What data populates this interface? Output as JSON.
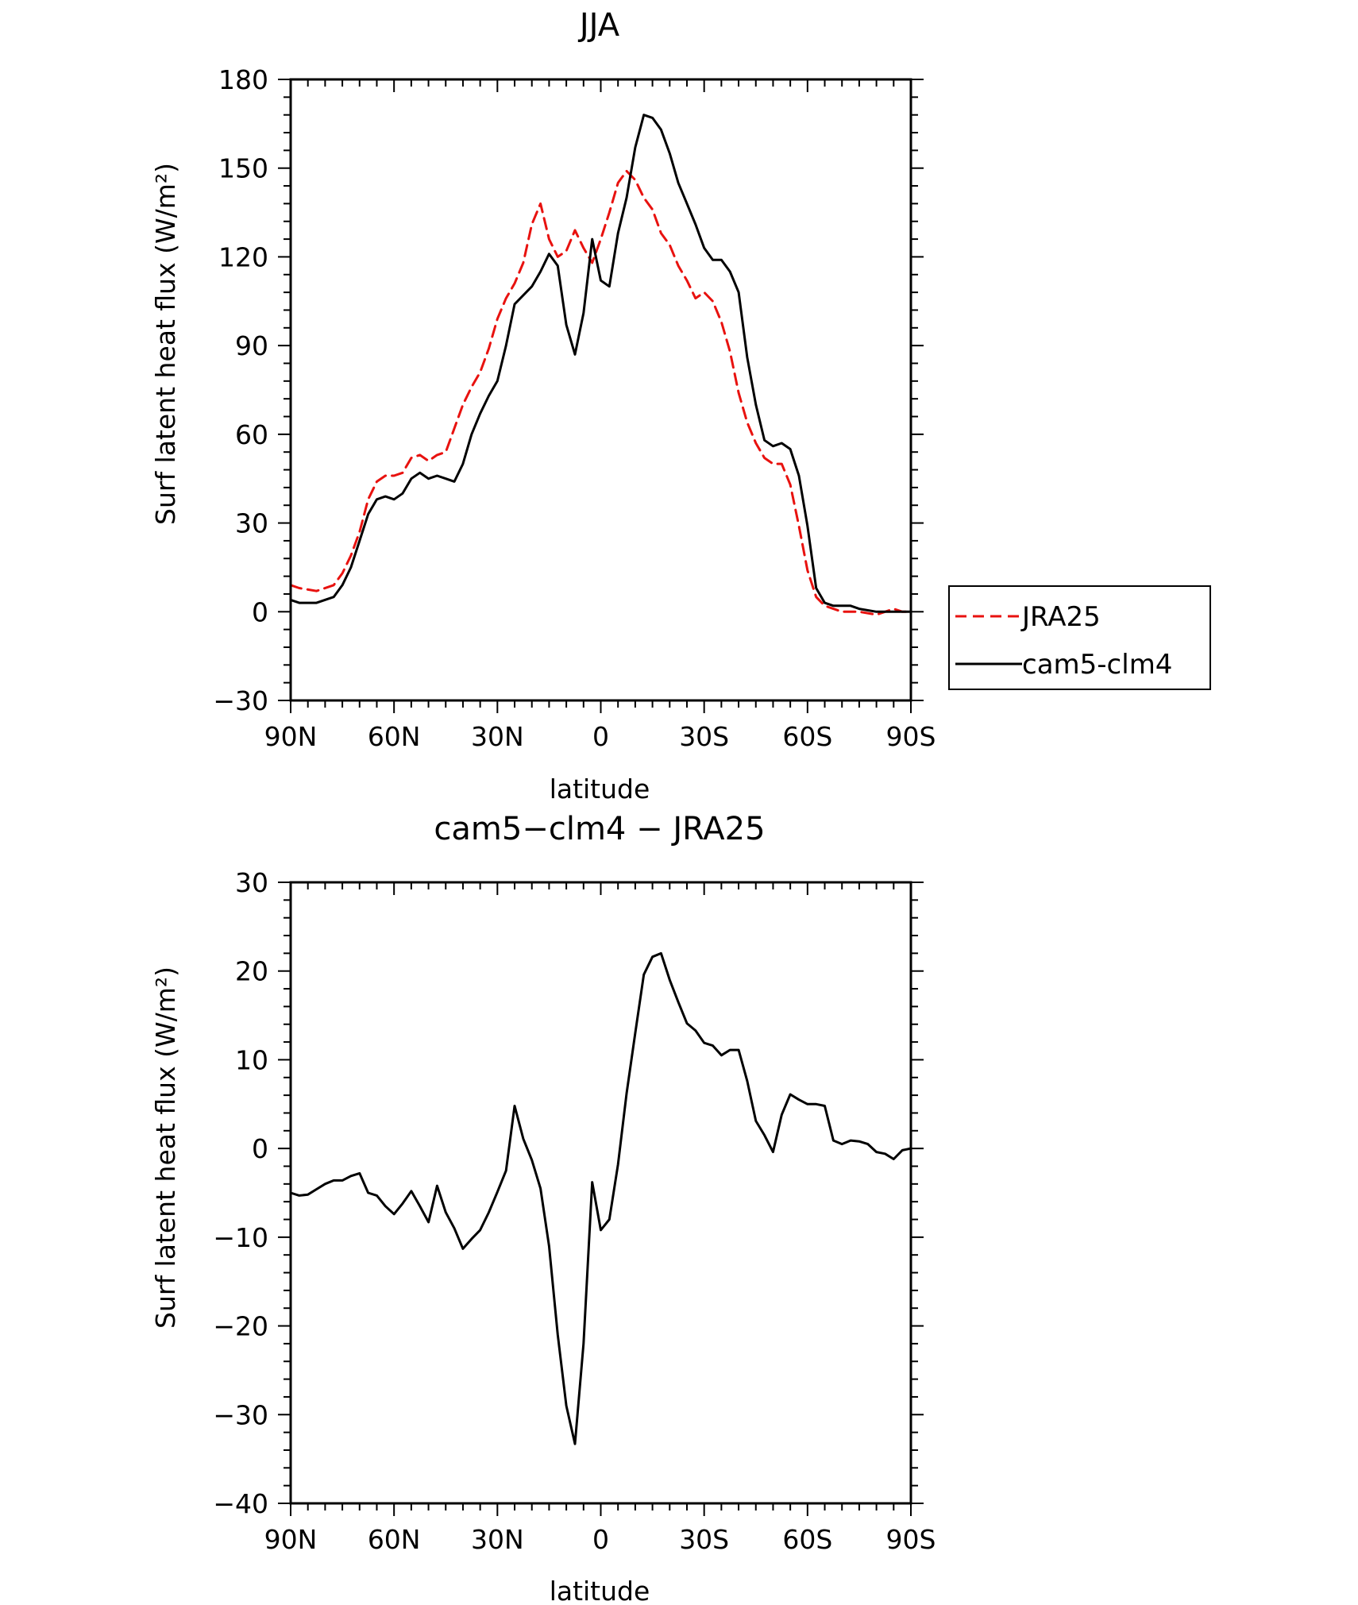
{
  "chart_data": [
    {
      "type": "line",
      "title": "JJA",
      "xlabel": "latitude",
      "ylabel": "Surf latent heat flux (W/m²)",
      "xlim": [
        90,
        -90
      ],
      "ylim": [
        -30,
        180
      ],
      "xticks": [
        90,
        60,
        30,
        0,
        -30,
        -60,
        -90
      ],
      "xtick_labels": [
        "90N",
        "60N",
        "30N",
        "0",
        "30S",
        "60S",
        "90S"
      ],
      "yticks": [
        -30,
        0,
        30,
        60,
        90,
        120,
        150,
        180
      ],
      "ytick_labels": [
        "−30",
        "0",
        "30",
        "60",
        "90",
        "120",
        "150",
        "180"
      ],
      "legend_position": "right",
      "x": [
        90,
        87.5,
        82.5,
        77.5,
        75,
        72.5,
        70,
        67.5,
        65,
        62.5,
        60,
        57.5,
        55,
        52.5,
        50,
        47.5,
        45,
        42.5,
        40,
        37.5,
        35,
        32.5,
        30,
        27.5,
        25,
        22.5,
        20,
        17.5,
        15,
        12.5,
        10,
        7.5,
        5,
        2.5,
        0,
        -2.5,
        -5,
        -7.5,
        -10,
        -12.5,
        -15,
        -17.5,
        -20,
        -22.5,
        -25,
        -27.5,
        -30,
        -32.5,
        -35,
        -37.5,
        -40,
        -42.5,
        -45,
        -47.5,
        -50,
        -52.5,
        -55,
        -57.5,
        -60,
        -62.5,
        -65,
        -67.5,
        -70,
        -72.5,
        -75,
        -80,
        -82.5,
        -85,
        -87.5,
        -90
      ],
      "series": [
        {
          "name": "JRA25",
          "color": "#e8120f",
          "dash": "dashed",
          "values": [
            9,
            8,
            7,
            9,
            13,
            19,
            27,
            38,
            44,
            46,
            46,
            47,
            52,
            53,
            51,
            53,
            54,
            62,
            70,
            76,
            81,
            89,
            99,
            106,
            111,
            118,
            131,
            138,
            126,
            120,
            122,
            129,
            123,
            118,
            126,
            135,
            145,
            149,
            146,
            140,
            136,
            128,
            124,
            117,
            112,
            106,
            108,
            105,
            98,
            88,
            74,
            64,
            57,
            52,
            50,
            50,
            43,
            29,
            14,
            5,
            2,
            1,
            0,
            0,
            0,
            -1,
            0,
            1,
            0,
            0
          ]
        },
        {
          "name": "cam5-clm4",
          "color": "#000000",
          "dash": "solid",
          "values": [
            4,
            3,
            3,
            5,
            9,
            15,
            24,
            33,
            38,
            39,
            38,
            40,
            45,
            47,
            45,
            46,
            45,
            44,
            50,
            60,
            67,
            73,
            78,
            90,
            104,
            107,
            110,
            115,
            121,
            117,
            97,
            87,
            101,
            126,
            112,
            110,
            128,
            140,
            157,
            168,
            167,
            163,
            155,
            145,
            138,
            131,
            123,
            119,
            119,
            115,
            108,
            86,
            70,
            58,
            56,
            57,
            55,
            46,
            29,
            8,
            3,
            2,
            2,
            2,
            1,
            0,
            0,
            0,
            0,
            0
          ]
        }
      ]
    },
    {
      "type": "line",
      "title": "cam5−clm4 − JRA25",
      "xlabel": "latitude",
      "ylabel": "Surf latent heat flux (W/m²)",
      "xlim": [
        90,
        -90
      ],
      "ylim": [
        -40,
        30
      ],
      "xticks": [
        90,
        60,
        30,
        0,
        -30,
        -60,
        -90
      ],
      "xtick_labels": [
        "90N",
        "60N",
        "30N",
        "0",
        "30S",
        "60S",
        "90S"
      ],
      "yticks": [
        -40,
        -30,
        -20,
        -10,
        0,
        10,
        20,
        30
      ],
      "ytick_labels": [
        "−40",
        "−30",
        "−20",
        "−10",
        "0",
        "10",
        "20",
        "30"
      ],
      "x": [
        90,
        87.5,
        85,
        82.5,
        80,
        77.5,
        75,
        72.5,
        70,
        67.5,
        65,
        62.5,
        60,
        57.5,
        55,
        52.5,
        50,
        47.5,
        45,
        42.5,
        40,
        37.5,
        35,
        32.5,
        30,
        27.5,
        25,
        22.5,
        20,
        17.5,
        15,
        12.5,
        10,
        7.5,
        5,
        2.5,
        0,
        -2.5,
        -5,
        -7.5,
        -10,
        -12.5,
        -15,
        -17.5,
        -20,
        -22.5,
        -25,
        -27.5,
        -30,
        -32.5,
        -35,
        -37.5,
        -40,
        -42.5,
        -45,
        -47.5,
        -50,
        -52.5,
        -55,
        -57.5,
        -60,
        -62.5,
        -65,
        -67.5,
        -70,
        -72.5,
        -75,
        -77.5,
        -80,
        -82.5,
        -85,
        -87.5,
        -90
      ],
      "series": [
        {
          "name": "",
          "color": "#000000",
          "dash": "solid",
          "values": [
            -5,
            -5.3,
            -5.2,
            -4.6,
            -4,
            -3.6,
            -3.6,
            -3.1,
            -2.8,
            -5,
            -5.3,
            -6.5,
            -7.4,
            -6.2,
            -4.8,
            -6.5,
            -8.3,
            -4.2,
            -7.2,
            -9,
            -11.3,
            -10.2,
            -9.2,
            -7.2,
            -4.9,
            -2.5,
            4.8,
            1.1,
            -1.3,
            -4.5,
            -11,
            -21,
            -29,
            -33.3,
            -22,
            -3.8,
            -9.2,
            -8,
            -1.8,
            6.2,
            13,
            19.6,
            21.6,
            22,
            19,
            16.5,
            14.1,
            13.3,
            11.9,
            11.6,
            10.5,
            11.1,
            11.1,
            7.6,
            3.1,
            1.5,
            -0.4,
            3.8,
            6.1,
            5.5,
            5,
            5,
            4.8,
            0.9,
            0.5,
            0.9,
            0.8,
            0.5,
            -0.4,
            -0.6,
            -1.2,
            -0.2,
            0
          ]
        }
      ]
    }
  ]
}
